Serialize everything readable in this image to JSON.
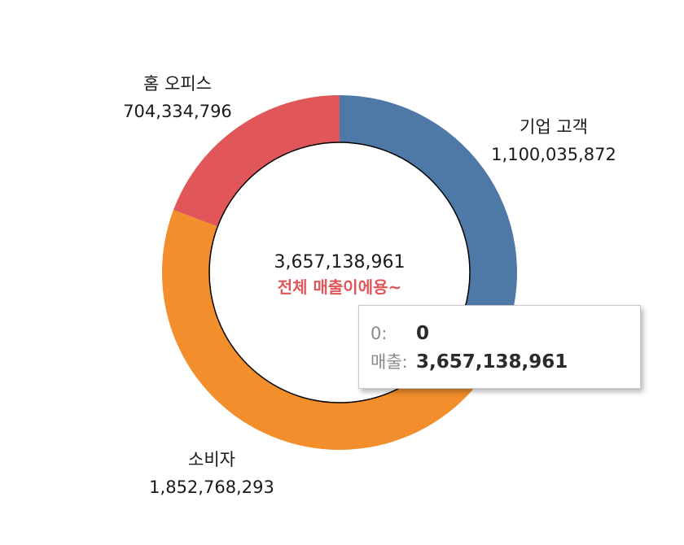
{
  "chart_data": {
    "type": "pie",
    "style": "donut",
    "segments": [
      {
        "label": "기업 고객",
        "value": 1100035872,
        "value_text": "1,100,035,872",
        "color": "#4e79a7"
      },
      {
        "label": "소비자",
        "value": 1852768293,
        "value_text": "1,852,768,293",
        "color": "#f28e2b"
      },
      {
        "label": "홈 오피스",
        "value": 704334796,
        "value_text": "704,334,796",
        "color": "#e15759"
      }
    ],
    "center": {
      "total_text": "3,657,138,961",
      "caption": "전체 매출이에용~",
      "caption_color": "#e15759"
    }
  },
  "tooltip": {
    "rows": [
      {
        "key": "0:",
        "value": "0"
      },
      {
        "key": "매출:",
        "value": "3,657,138,961"
      }
    ]
  }
}
